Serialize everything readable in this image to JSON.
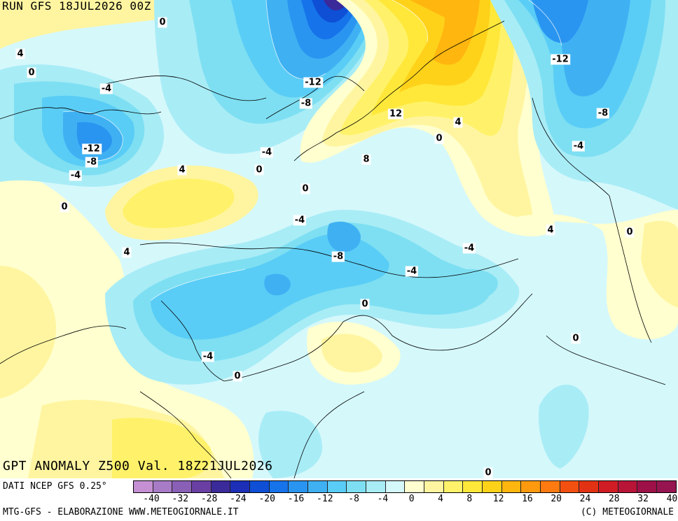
{
  "header": {
    "run_label": "RUN GFS 18JUL2026 00Z"
  },
  "map": {
    "title": "GPT ANOMALY Z500 Val. 18Z21JUL2026",
    "contour_labels": [
      "0",
      "4",
      "0",
      "-4",
      "-12",
      "-8",
      "-4",
      "0",
      "4",
      "-4",
      "0",
      "-12",
      "-8",
      "-4",
      "-8",
      "12",
      "4",
      "0",
      "8",
      "-12",
      "-8",
      "-4",
      "4",
      "0",
      "-4",
      "-8",
      "-4",
      "-4",
      "4",
      "0",
      "0",
      "0",
      "-4",
      "0",
      "0"
    ]
  },
  "legend": {
    "ticks": [
      "-40",
      "-32",
      "-28",
      "-24",
      "-20",
      "-16",
      "-12",
      "-8",
      "-4",
      "0",
      "4",
      "8",
      "12",
      "16",
      "20",
      "24",
      "28",
      "32",
      "40"
    ],
    "colors": [
      "#c590d3",
      "#a77bc6",
      "#8a5fb6",
      "#6a3fa4",
      "#3b2a9a",
      "#1c2fb6",
      "#0e4fd6",
      "#1673ea",
      "#2a95f0",
      "#3fb1f3",
      "#5acdf6",
      "#7edff2",
      "#a8ecf6",
      "#d5f8fb",
      "#ffffcf",
      "#fff5a0",
      "#fff26a",
      "#ffe83a",
      "#ffd21a",
      "#ffb60f",
      "#ff9a0f",
      "#ff7a10",
      "#f25010",
      "#e23214",
      "#d01c24",
      "#b71438",
      "#9e1048",
      "#961550"
    ]
  },
  "footer": {
    "data_source": "DATI NCEP GFS 0.25°",
    "credit": "MTG-GFS - ELABORAZIONE WWW.METEOGIORNALE.IT",
    "copyright": "(C) METEOGIORNALE"
  },
  "colors": {
    "background": "#ffffff",
    "text": "#000000"
  }
}
